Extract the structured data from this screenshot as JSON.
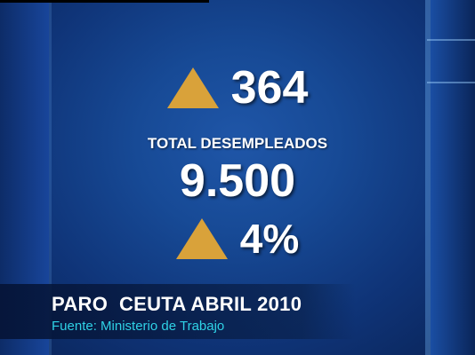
{
  "stats": {
    "change_count": "364",
    "total_label": "TOTAL DESEMPLEADOS",
    "total_value": "9.500",
    "change_percent": "4%"
  },
  "lower_third": {
    "title": "PARO  CEUTA ABRIL 2010",
    "source": "Fuente: Ministerio de Trabajo"
  },
  "colors": {
    "background": "#174a96",
    "triangle": "#d9a23a",
    "source_text": "#2fd2e6"
  },
  "icons": {
    "increase": "triangle-up-icon"
  }
}
